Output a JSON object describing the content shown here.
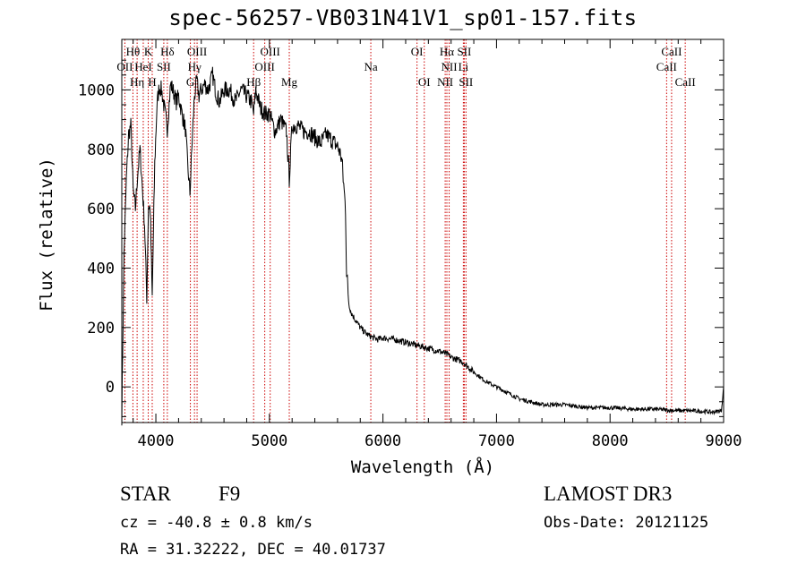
{
  "chart_data": {
    "type": "line",
    "title": "spec-56257-VB031N41V1_sp01-157.fits",
    "xlabel": "Wavelength (Å)",
    "ylabel": "Flux (relative)",
    "xlim": [
      3700,
      9000
    ],
    "ylim": [
      -120,
      1170
    ],
    "x_ticks": [
      4000,
      5000,
      6000,
      7000,
      8000,
      9000
    ],
    "y_ticks": [
      0,
      200,
      400,
      600,
      800,
      1000
    ],
    "grid": false,
    "legend": "none",
    "series": [
      {
        "name": "flux",
        "x": [
          3700,
          3720,
          3740,
          3760,
          3780,
          3800,
          3820,
          3840,
          3860,
          3880,
          3900,
          3920,
          3935,
          3950,
          3968,
          3990,
          4010,
          4030,
          4050,
          4070,
          4101,
          4130,
          4150,
          4180,
          4200,
          4230,
          4260,
          4280,
          4300,
          4320,
          4340,
          4360,
          4380,
          4400,
          4430,
          4460,
          4500,
          4530,
          4560,
          4600,
          4650,
          4700,
          4750,
          4800,
          4840,
          4861,
          4880,
          4920,
          4960,
          5000,
          5050,
          5100,
          5150,
          5175,
          5200,
          5250,
          5300,
          5350,
          5400,
          5450,
          5500,
          5550,
          5600,
          5620,
          5640,
          5650,
          5670,
          5680,
          5690,
          5700,
          5720,
          5750,
          5800,
          5850,
          5890,
          5950,
          6000,
          6100,
          6200,
          6300,
          6400,
          6500,
          6563,
          6600,
          6700,
          6800,
          6900,
          7000,
          7100,
          7200,
          7300,
          7400,
          7500,
          7600,
          7700,
          7800,
          7900,
          8000,
          8100,
          8200,
          8300,
          8400,
          8500,
          8600,
          8700,
          8800,
          8900,
          8980,
          9000
        ],
        "values": [
          -100,
          450,
          700,
          850,
          880,
          660,
          600,
          720,
          800,
          680,
          550,
          300,
          610,
          600,
          300,
          750,
          950,
          1010,
          1000,
          950,
          870,
          1020,
          1000,
          960,
          980,
          920,
          870,
          750,
          650,
          830,
          980,
          1030,
          980,
          1000,
          1020,
          1000,
          1050,
          990,
          960,
          1000,
          1000,
          960,
          1000,
          980,
          960,
          920,
          1000,
          940,
          920,
          920,
          860,
          900,
          860,
          700,
          880,
          880,
          860,
          860,
          840,
          820,
          850,
          830,
          810,
          790,
          760,
          700,
          600,
          380,
          340,
          280,
          250,
          230,
          200,
          180,
          170,
          160,
          165,
          160,
          150,
          140,
          130,
          120,
          110,
          100,
          85,
          50,
          20,
          0,
          -20,
          -40,
          -50,
          -60,
          -60,
          -60,
          -65,
          -70,
          -70,
          -70,
          -72,
          -75,
          -75,
          -75,
          -78,
          -80,
          -80,
          -82,
          -85,
          -80,
          0
        ]
      }
    ],
    "spectral_lines": [
      {
        "label": "Hθ",
        "wavelength": 3798,
        "row": 1
      },
      {
        "label": "OII",
        "wavelength": 3727,
        "row": 2
      },
      {
        "label": "Hη",
        "wavelength": 3835,
        "row": 3
      },
      {
        "label": "HeI",
        "wavelength": 3889,
        "row": 2
      },
      {
        "label": "K",
        "wavelength": 3933,
        "row": 1
      },
      {
        "label": "H",
        "wavelength": 3968,
        "row": 3
      },
      {
        "label": "SII",
        "wavelength": 4070,
        "row": 2
      },
      {
        "label": "Hδ",
        "wavelength": 4101,
        "row": 1
      },
      {
        "label": "OIII",
        "wavelength": 4363,
        "row": 1
      },
      {
        "label": "Hγ",
        "wavelength": 4340,
        "row": 2
      },
      {
        "label": "G",
        "wavelength": 4304,
        "row": 3
      },
      {
        "label": "Hβ",
        "wavelength": 4861,
        "row": 3
      },
      {
        "label": "OIII",
        "wavelength": 5007,
        "row": 1
      },
      {
        "label": "OIII",
        "wavelength": 4959,
        "row": 2
      },
      {
        "label": "Mg",
        "wavelength": 5175,
        "row": 3
      },
      {
        "label": "Na",
        "wavelength": 5893,
        "row": 2
      },
      {
        "label": "OI",
        "wavelength": 6300,
        "row": 1
      },
      {
        "label": "OI",
        "wavelength": 6364,
        "row": 3
      },
      {
        "label": "Hα",
        "wavelength": 6563,
        "row": 1
      },
      {
        "label": "NII",
        "wavelength": 6583,
        "row": 2
      },
      {
        "label": "NII",
        "wavelength": 6548,
        "row": 3
      },
      {
        "label": "SII",
        "wavelength": 6716,
        "row": 1
      },
      {
        "label": "Li",
        "wavelength": 6708,
        "row": 2
      },
      {
        "label": "SII",
        "wavelength": 6731,
        "row": 3
      },
      {
        "label": "CaII",
        "wavelength": 8542,
        "row": 1
      },
      {
        "label": "CaII",
        "wavelength": 8498,
        "row": 2
      },
      {
        "label": "CaII",
        "wavelength": 8662,
        "row": 3
      }
    ]
  },
  "info": {
    "object_class": "STAR",
    "subclass": "F9",
    "survey": "LAMOST DR3",
    "redshift": "cz = -40.8 ± 0.8 km/s",
    "obs_date": "Obs-Date: 20121125",
    "coords": "RA =  31.32222, DEC =  40.01737"
  },
  "colors": {
    "line": "#000000",
    "marker_lines": "#cc0000",
    "background": "#ffffff"
  }
}
